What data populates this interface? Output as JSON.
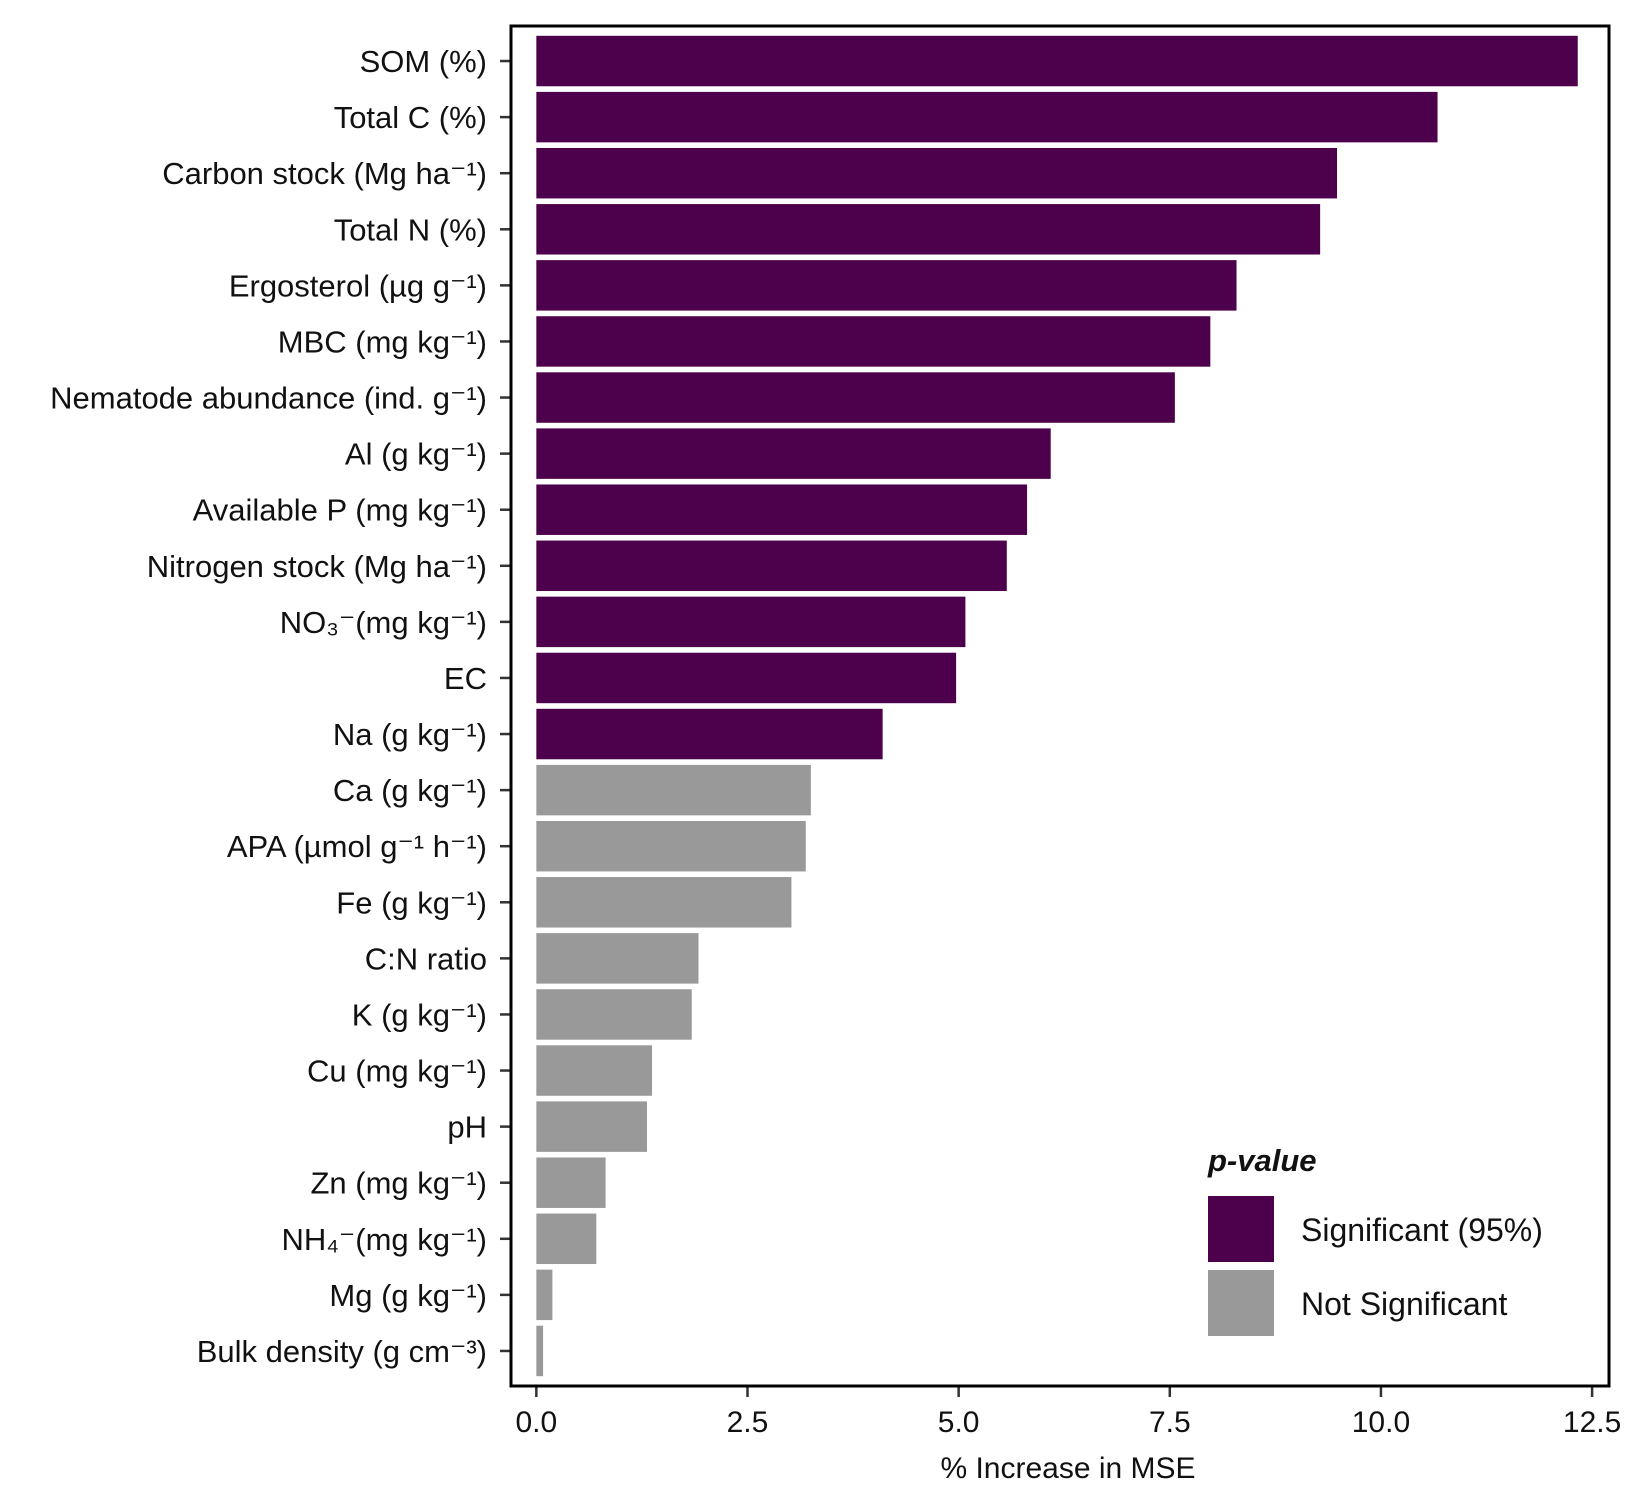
{
  "chart_data": {
    "type": "bar",
    "orientation": "horizontal",
    "xlabel": "% Increase in MSE",
    "xlim": [
      -0.3,
      12.7
    ],
    "xticks": [
      "0.0",
      "2.5",
      "5.0",
      "7.5",
      "10.0",
      "12.5"
    ],
    "xtick_values": [
      0,
      2.5,
      5,
      7.5,
      10,
      12.5
    ],
    "grid": false,
    "legend": {
      "title": "p-value",
      "placement": "bottom-right",
      "entries": [
        {
          "label": "Significant (95%)",
          "color": "#4d004b",
          "key": "sig"
        },
        {
          "label": "Not Significant",
          "color": "#999999",
          "key": "ns"
        }
      ]
    },
    "categories": [
      {
        "label": "SOM (%)",
        "value": 12.33,
        "group": "sig"
      },
      {
        "label": "Total C (%)",
        "value": 10.67,
        "group": "sig"
      },
      {
        "label": "Carbon stock (Mg ha⁻¹)",
        "value": 9.48,
        "group": "sig"
      },
      {
        "label": "Total N (%)",
        "value": 9.28,
        "group": "sig"
      },
      {
        "label": "Ergosterol (µg g⁻¹)",
        "value": 8.29,
        "group": "sig"
      },
      {
        "label": "MBC (mg kg⁻¹)",
        "value": 7.98,
        "group": "sig"
      },
      {
        "label": "Nematode abundance (ind. g⁻¹)",
        "value": 7.56,
        "group": "sig"
      },
      {
        "label": "Al (g kg⁻¹)",
        "value": 6.09,
        "group": "sig"
      },
      {
        "label": "Available P (mg kg⁻¹)",
        "value": 5.81,
        "group": "sig"
      },
      {
        "label": "Nitrogen stock (Mg ha⁻¹)",
        "value": 5.57,
        "group": "sig"
      },
      {
        "label": "NO₃⁻(mg kg⁻¹)",
        "value": 5.08,
        "group": "sig"
      },
      {
        "label": "EC",
        "value": 4.97,
        "group": "sig"
      },
      {
        "label": "Na (g kg⁻¹)",
        "value": 4.1,
        "group": "sig"
      },
      {
        "label": "Ca (g kg⁻¹)",
        "value": 3.25,
        "group": "ns"
      },
      {
        "label": "APA (µmol g⁻¹ h⁻¹)",
        "value": 3.19,
        "group": "ns"
      },
      {
        "label": "Fe (g kg⁻¹)",
        "value": 3.02,
        "group": "ns"
      },
      {
        "label": "C:N ratio",
        "value": 1.92,
        "group": "ns"
      },
      {
        "label": "K (g kg⁻¹)",
        "value": 1.84,
        "group": "ns"
      },
      {
        "label": "Cu (mg kg⁻¹)",
        "value": 1.37,
        "group": "ns"
      },
      {
        "label": "pH",
        "value": 1.31,
        "group": "ns"
      },
      {
        "label": "Zn (mg kg⁻¹)",
        "value": 0.82,
        "group": "ns"
      },
      {
        "label": "NH₄⁻(mg kg⁻¹)",
        "value": 0.71,
        "group": "ns"
      },
      {
        "label": "Mg (g kg⁻¹)",
        "value": 0.19,
        "group": "ns"
      },
      {
        "label": "Bulk density (g cm⁻³)",
        "value": 0.08,
        "group": "ns"
      }
    ]
  }
}
